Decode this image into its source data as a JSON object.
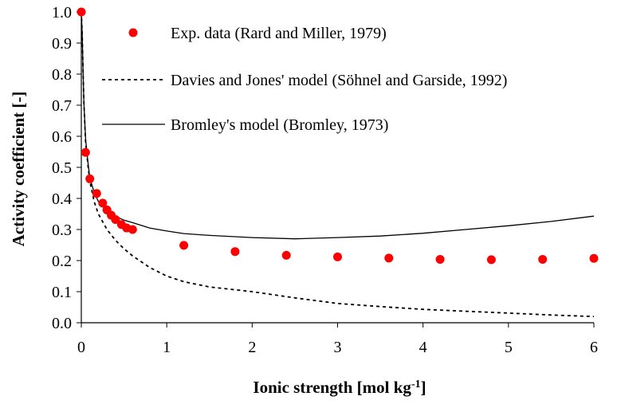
{
  "chart_data": {
    "type": "scatter",
    "xlabel": "Ionic strength [mol kg",
    "xlabel_sup": "-1",
    "xlabel_end": "]",
    "ylabel": "Activity coefficient [-]",
    "xlim": [
      0,
      6
    ],
    "ylim": [
      0,
      1.0
    ],
    "x_ticks": [
      0,
      1,
      2,
      3,
      4,
      5,
      6
    ],
    "x_tick_labels": [
      "0",
      "1",
      "2",
      "3",
      "4",
      "5",
      "6"
    ],
    "y_ticks": [
      0,
      0.1,
      0.2,
      0.3,
      0.4,
      0.5,
      0.6,
      0.7,
      0.8,
      0.9,
      1.0
    ],
    "y_tick_labels": [
      "0.0",
      "0.1",
      "0.2",
      "0.3",
      "0.4",
      "0.5",
      "0.6",
      "0.7",
      "0.8",
      "0.9",
      "1.0"
    ],
    "grid": false,
    "legend_position": "top-right",
    "series": [
      {
        "name": "Exp. data (Rard and Miller, 1979)",
        "style": "markers",
        "color": "#ff0000",
        "x": [
          0.0,
          0.05,
          0.1,
          0.18,
          0.25,
          0.3,
          0.35,
          0.4,
          0.47,
          0.53,
          0.6,
          1.2,
          1.8,
          2.4,
          3.0,
          3.6,
          4.2,
          4.8,
          5.4,
          6.0
        ],
        "y": [
          1.0,
          0.548,
          0.463,
          0.416,
          0.385,
          0.363,
          0.346,
          0.332,
          0.316,
          0.305,
          0.3,
          0.249,
          0.229,
          0.217,
          0.212,
          0.208,
          0.204,
          0.203,
          0.204,
          0.207
        ]
      },
      {
        "name": "Davies and Jones' model  (Söhnel and Garside, 1992)",
        "style": "dotted",
        "color": "#000000",
        "x": [
          0.0,
          0.01,
          0.02,
          0.03,
          0.05,
          0.08,
          0.1,
          0.15,
          0.2,
          0.3,
          0.4,
          0.5,
          0.6,
          0.8,
          1.0,
          1.2,
          1.5,
          2.0,
          2.5,
          3.0,
          3.5,
          4.0,
          4.5,
          5.0,
          5.5,
          6.0
        ],
        "y": [
          1.0,
          0.93,
          0.82,
          0.71,
          0.58,
          0.5,
          0.455,
          0.39,
          0.35,
          0.3,
          0.265,
          0.238,
          0.215,
          0.178,
          0.15,
          0.132,
          0.115,
          0.1,
          0.08,
          0.062,
          0.052,
          0.043,
          0.037,
          0.031,
          0.025,
          0.02
        ]
      },
      {
        "name": "Bromley's model (Bromley, 1973)",
        "style": "solid",
        "color": "#000000",
        "x": [
          0.0,
          0.01,
          0.02,
          0.03,
          0.05,
          0.08,
          0.1,
          0.15,
          0.2,
          0.3,
          0.4,
          0.5,
          0.6,
          0.8,
          1.0,
          1.2,
          1.5,
          2.0,
          2.5,
          3.0,
          3.5,
          4.0,
          4.5,
          5.0,
          5.5,
          6.0
        ],
        "y": [
          1.0,
          0.93,
          0.82,
          0.71,
          0.59,
          0.51,
          0.465,
          0.42,
          0.39,
          0.36,
          0.342,
          0.33,
          0.322,
          0.305,
          0.295,
          0.287,
          0.281,
          0.274,
          0.27,
          0.274,
          0.279,
          0.288,
          0.3,
          0.312,
          0.326,
          0.343
        ]
      }
    ]
  }
}
